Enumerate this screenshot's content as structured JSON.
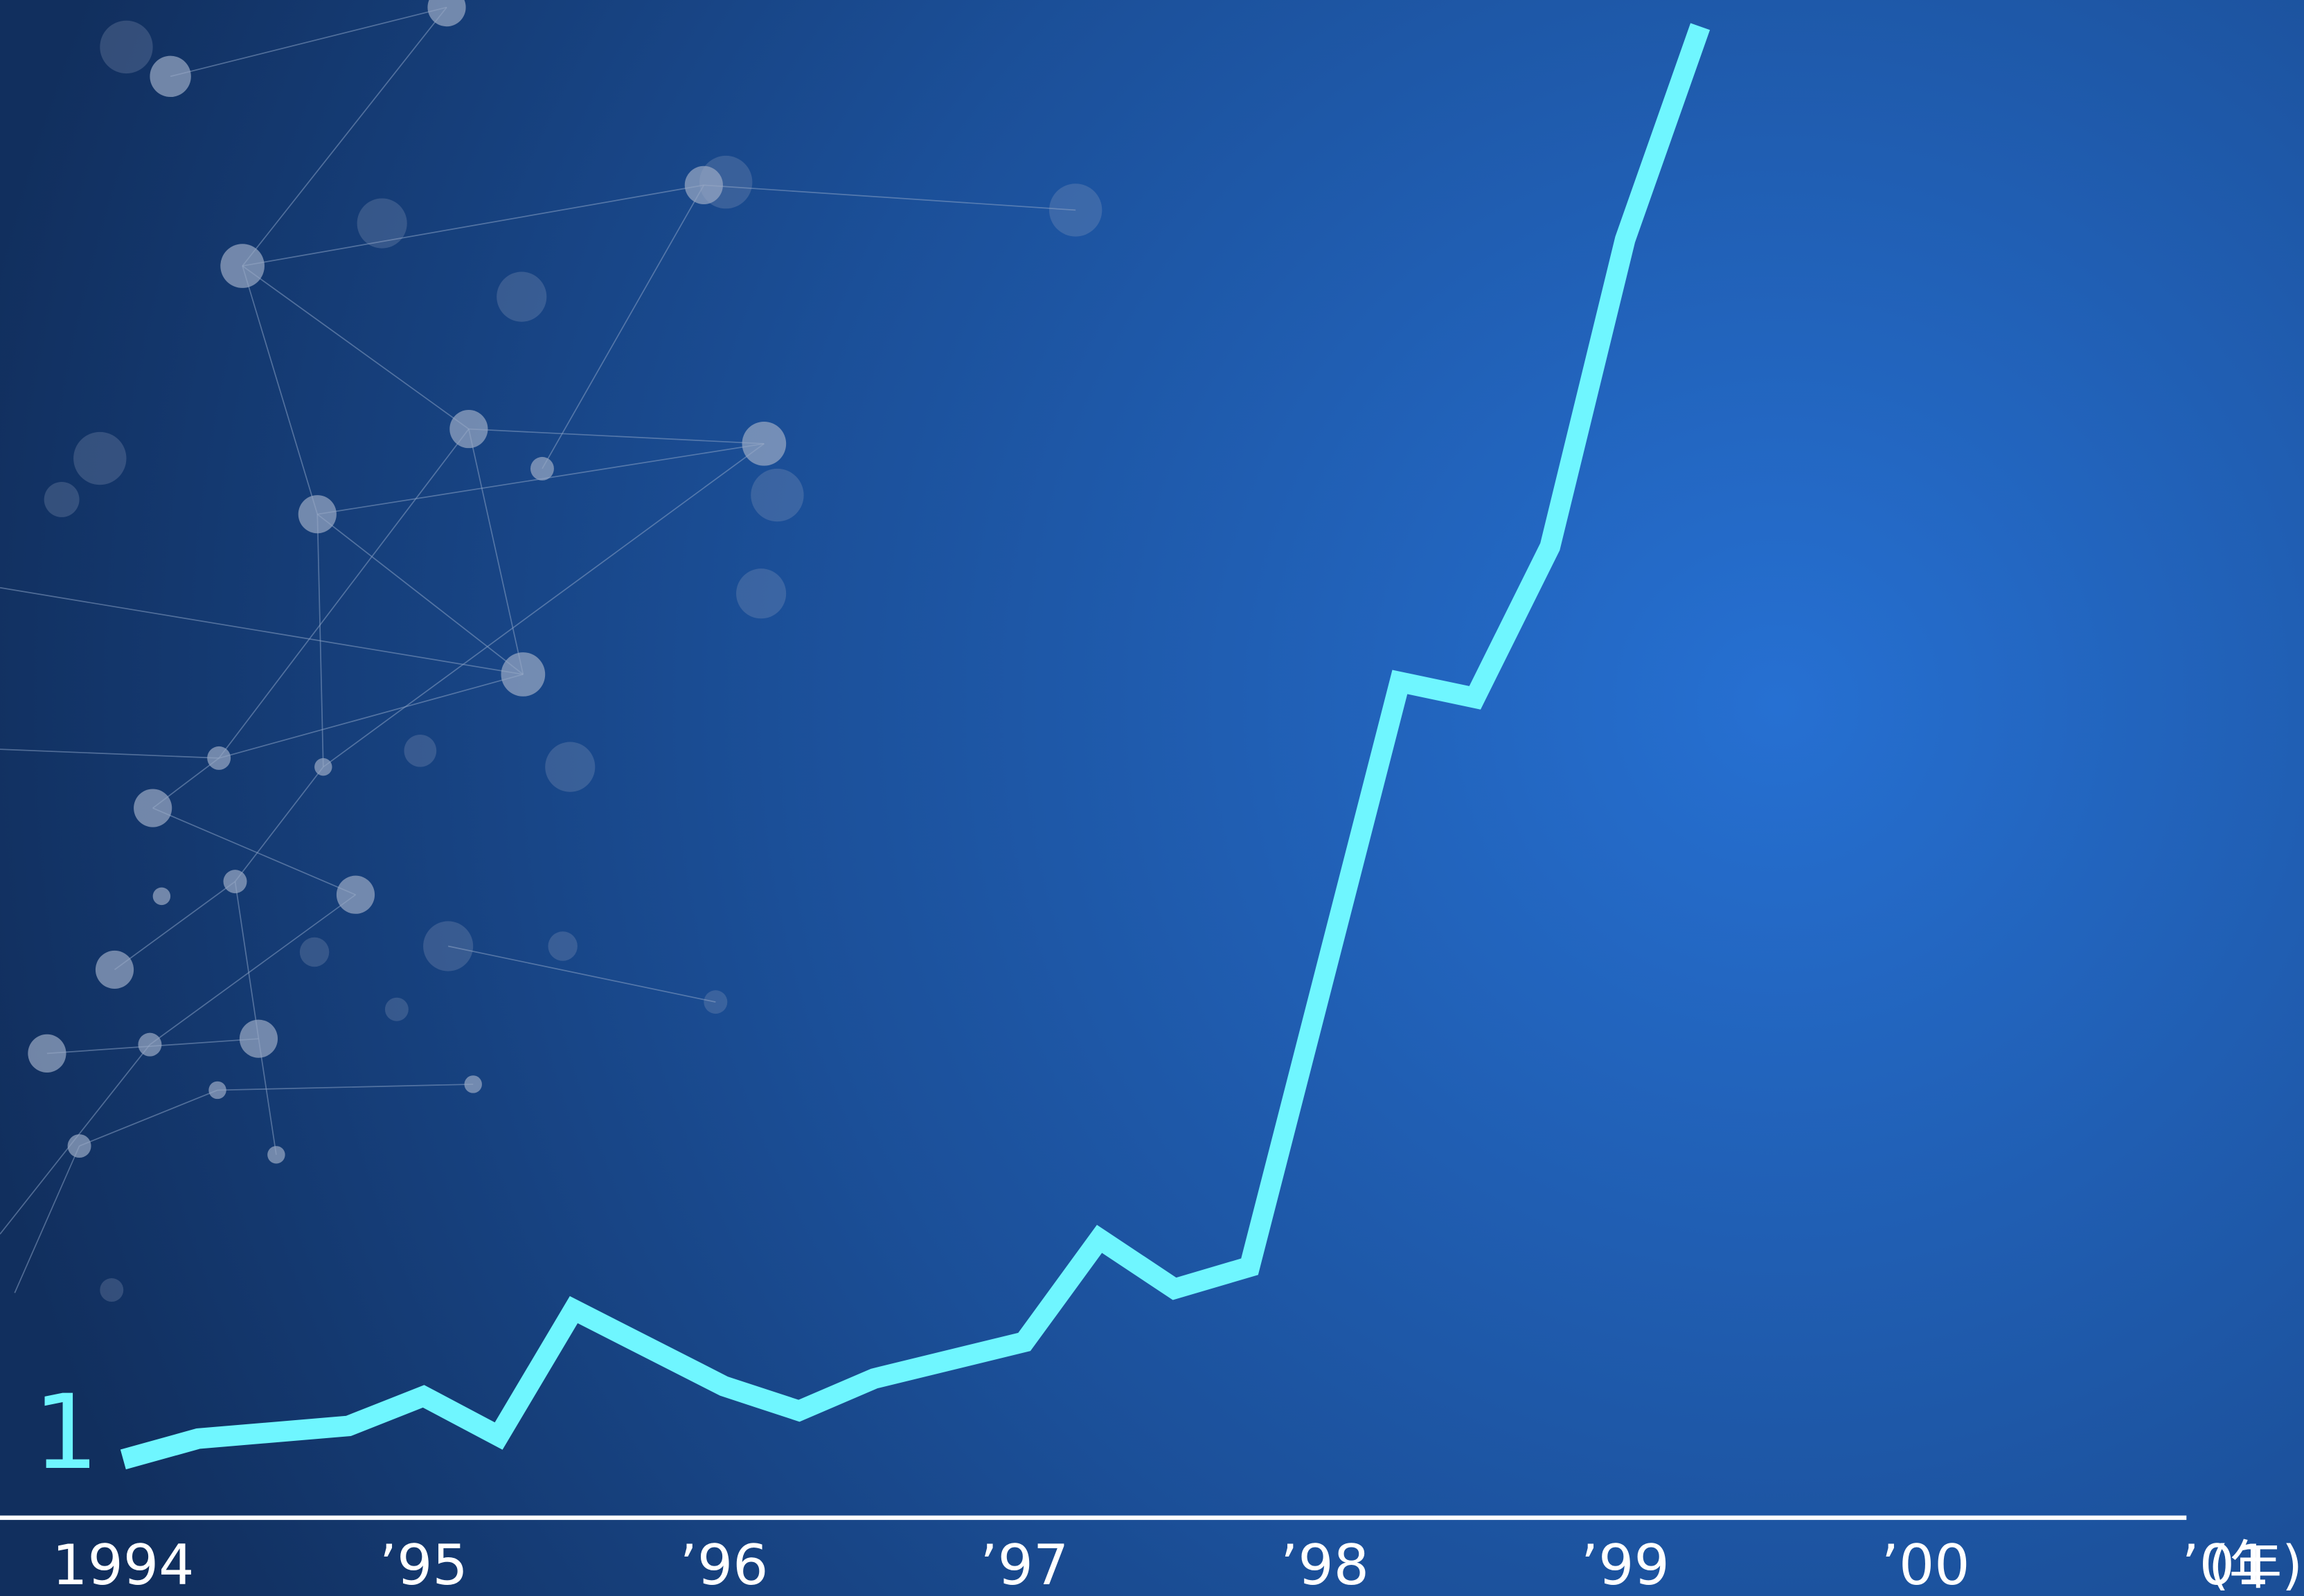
{
  "chart_data": {
    "type": "line",
    "x": [
      1994,
      1994.25,
      1994.75,
      1995,
      1995.25,
      1995.5,
      1996,
      1996.25,
      1996.5,
      1997,
      1997.25,
      1997.5,
      1997.75,
      1998.25,
      1998.5,
      1998.75,
      1999,
      1999.25
    ],
    "values": [
      1,
      1.33,
      1.53,
      2.0,
      1.37,
      3.37,
      2.16,
      1.77,
      2.28,
      2.86,
      4.49,
      3.7,
      4.05,
      13.3,
      13.05,
      15.44,
      20.3,
      23.67
    ],
    "color": "#6ff6ff",
    "xlim": [
      1993.59,
      2001.26
    ],
    "ylim": [
      -1.16,
      24.09
    ],
    "xticks": [
      1994,
      {
        "value": 1995,
        "label": "’95"
      },
      {
        "value": 1996,
        "label": "’96"
      },
      {
        "value": 1997,
        "label": "’97"
      },
      {
        "value": 1998,
        "label": "’98"
      },
      {
        "value": 1999,
        "label": "’99"
      },
      {
        "value": 2000,
        "label": "’00"
      },
      {
        "value": 2001,
        "label": "’01"
      }
    ],
    "xlabel": "(年)"
  }
}
